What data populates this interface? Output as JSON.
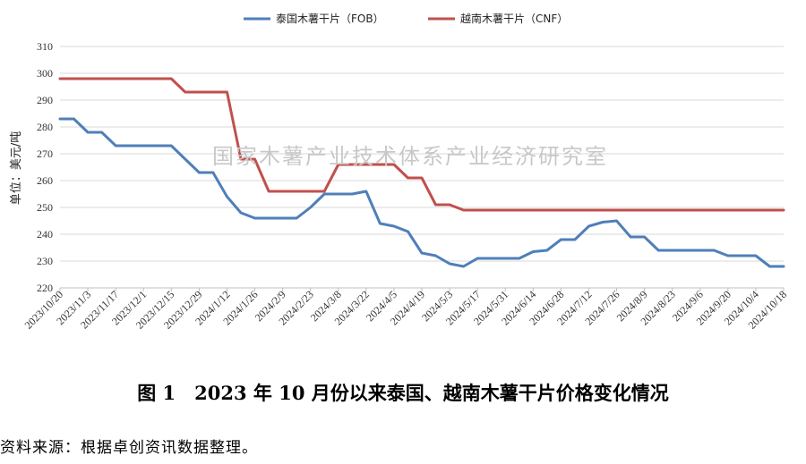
{
  "chart_data": {
    "type": "line",
    "title": "",
    "xlabel": "",
    "ylabel": "单位：美元/吨",
    "ylim": [
      220,
      310
    ],
    "yticks": [
      220,
      230,
      240,
      250,
      260,
      270,
      280,
      290,
      300,
      310
    ],
    "grid": true,
    "legend_position": "top",
    "categories": [
      "2023/10/20",
      "2023/10/27",
      "2023/11/3",
      "2023/11/10",
      "2023/11/17",
      "2023/11/24",
      "2023/12/1",
      "2023/12/8",
      "2023/12/15",
      "2023/12/22",
      "2023/12/29",
      "2024/1/5",
      "2024/1/12",
      "2024/1/19",
      "2024/1/26",
      "2024/2/2",
      "2024/2/9",
      "2024/2/16",
      "2024/2/23",
      "2024/3/1",
      "2024/3/8",
      "2024/3/15",
      "2024/3/22",
      "2024/3/29",
      "2024/4/5",
      "2024/4/12",
      "2024/4/19",
      "2024/4/26",
      "2024/5/3",
      "2024/5/10",
      "2024/5/17",
      "2024/5/24",
      "2024/5/31",
      "2024/6/7",
      "2024/6/14",
      "2024/6/21",
      "2024/6/28",
      "2024/7/5",
      "2024/7/12",
      "2024/7/19",
      "2024/7/26",
      "2024/8/2",
      "2024/8/9",
      "2024/8/16",
      "2024/8/23",
      "2024/8/30",
      "2024/9/6",
      "2024/9/13",
      "2024/9/20",
      "2024/9/27",
      "2024/10/4",
      "2024/10/11",
      "2024/10/18"
    ],
    "series": [
      {
        "name": "泰国木薯干片（FOB）",
        "color": "#4f7fba",
        "values": [
          283,
          283,
          278,
          278,
          273,
          273,
          273,
          273,
          273,
          268,
          263,
          263,
          254,
          248,
          246,
          246,
          246,
          246,
          250,
          255,
          255,
          255,
          256,
          244,
          243,
          241,
          233,
          232,
          229,
          228,
          231,
          231,
          231,
          231,
          233.5,
          234,
          238,
          238,
          243,
          244.5,
          245,
          239,
          239,
          234,
          234,
          234,
          234,
          234,
          232,
          232,
          232,
          228,
          228
        ]
      },
      {
        "name": "越南木薯干片（CNF）",
        "color": "#c0504d",
        "values": [
          298,
          298,
          298,
          298,
          298,
          298,
          298,
          298,
          298,
          293,
          293,
          293,
          293,
          268,
          268,
          256,
          256,
          256,
          256,
          256,
          266,
          266,
          266,
          266,
          266,
          261,
          261,
          251,
          251,
          249,
          249,
          249,
          249,
          249,
          249,
          249,
          249,
          249,
          249,
          249,
          249,
          249,
          249,
          249,
          249,
          249,
          249,
          249,
          249,
          249,
          249,
          249,
          249
        ]
      }
    ],
    "tick_labels": [
      "2023/10/20",
      "2023/11/3",
      "2023/11/17",
      "2023/12/1",
      "2023/12/15",
      "2023/12/29",
      "2024/1/12",
      "2024/1/26",
      "2024/2/9",
      "2024/2/23",
      "2024/3/8",
      "2024/3/22",
      "2024/4/5",
      "2024/4/19",
      "2024/5/3",
      "2024/5/17",
      "2024/5/31",
      "2024/6/14",
      "2024/6/28",
      "2024/7/12",
      "2024/7/26",
      "2024/8/9",
      "2024/8/23",
      "2024/9/6",
      "2024/9/20",
      "2024/10/4",
      "2024/10/18"
    ]
  },
  "watermark": "国家木薯产业技术体系产业经济研究室",
  "caption": "图 1　2023 年 10 月份以来泰国、越南木薯干片价格变化情况",
  "source": "资料来源：根据卓创资讯数据整理。"
}
